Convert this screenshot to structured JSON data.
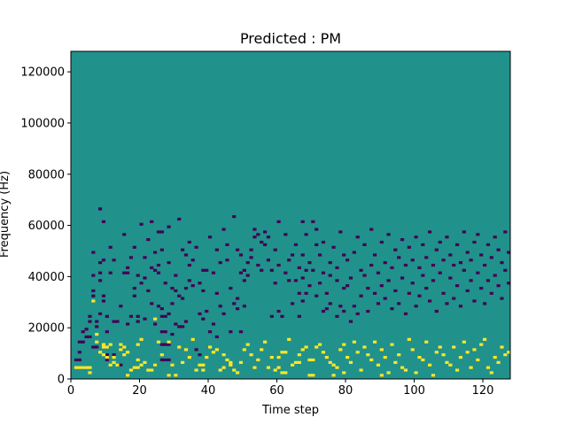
{
  "chart_data": {
    "type": "heatmap",
    "title": "Predicted : PM",
    "xlabel": "Time step",
    "ylabel": "Frequency (Hz)",
    "xlim": [
      0,
      128
    ],
    "ylim": [
      0,
      128000
    ],
    "x_ticks": [
      0,
      20,
      40,
      60,
      80,
      100,
      120
    ],
    "y_ticks": [
      0,
      20000,
      40000,
      60000,
      80000,
      100000,
      120000
    ],
    "grid": false,
    "colors": {
      "low": "#440154",
      "mid": "#21918c",
      "high": "#fde725"
    },
    "background_value": 0,
    "cells_low": [
      [
        1,
        7
      ],
      [
        2,
        7
      ],
      [
        2,
        10
      ],
      [
        2,
        14
      ],
      [
        3,
        14
      ],
      [
        3,
        18
      ],
      [
        4,
        16
      ],
      [
        4,
        19
      ],
      [
        5,
        16
      ],
      [
        5,
        22
      ],
      [
        5,
        24
      ],
      [
        6,
        12
      ],
      [
        6,
        32
      ],
      [
        6,
        34
      ],
      [
        6,
        40
      ],
      [
        6,
        49
      ],
      [
        7,
        12
      ],
      [
        7,
        20
      ],
      [
        7,
        22
      ],
      [
        8,
        25
      ],
      [
        8,
        38
      ],
      [
        8,
        41
      ],
      [
        8,
        45
      ],
      [
        8,
        66
      ],
      [
        9,
        30
      ],
      [
        9,
        32
      ],
      [
        9,
        46
      ],
      [
        9,
        61
      ],
      [
        10,
        7
      ],
      [
        10,
        9
      ],
      [
        10,
        18
      ],
      [
        10,
        24
      ],
      [
        11,
        41
      ],
      [
        11,
        51
      ],
      [
        12,
        9
      ],
      [
        12,
        22
      ],
      [
        12,
        46
      ],
      [
        13,
        22
      ],
      [
        14,
        5
      ],
      [
        14,
        28
      ],
      [
        15,
        41
      ],
      [
        15,
        56
      ],
      [
        16,
        21
      ],
      [
        16,
        41
      ],
      [
        16,
        43
      ],
      [
        17,
        24
      ],
      [
        17,
        47
      ],
      [
        18,
        32
      ],
      [
        18,
        35
      ],
      [
        18,
        51
      ],
      [
        19,
        22
      ],
      [
        19,
        24
      ],
      [
        19,
        40
      ],
      [
        20,
        37
      ],
      [
        20,
        60
      ],
      [
        21,
        23
      ],
      [
        21,
        39
      ],
      [
        21,
        47
      ],
      [
        22,
        34
      ],
      [
        22,
        54
      ],
      [
        23,
        29
      ],
      [
        23,
        43
      ],
      [
        23,
        61
      ],
      [
        24,
        5
      ],
      [
        24,
        21
      ],
      [
        24,
        42
      ],
      [
        24,
        49
      ],
      [
        25,
        28
      ],
      [
        25,
        41
      ],
      [
        25,
        44
      ],
      [
        25,
        57
      ],
      [
        26,
        7
      ],
      [
        26,
        13
      ],
      [
        26,
        18
      ],
      [
        26,
        24
      ],
      [
        26,
        27
      ],
      [
        26,
        50
      ],
      [
        26,
        57
      ],
      [
        27,
        7
      ],
      [
        27,
        13
      ],
      [
        27,
        18
      ],
      [
        27,
        24
      ],
      [
        27,
        37
      ],
      [
        28,
        7
      ],
      [
        28,
        13
      ],
      [
        28,
        25
      ],
      [
        28,
        45
      ],
      [
        28,
        59
      ],
      [
        29,
        17
      ],
      [
        29,
        29
      ],
      [
        29,
        35
      ],
      [
        30,
        21
      ],
      [
        30,
        34
      ],
      [
        30,
        40
      ],
      [
        31,
        20
      ],
      [
        31,
        32
      ],
      [
        31,
        62
      ],
      [
        32,
        20
      ],
      [
        32,
        31
      ],
      [
        32,
        50
      ],
      [
        33,
        22
      ],
      [
        33,
        35
      ],
      [
        33,
        48
      ],
      [
        34,
        38
      ],
      [
        34,
        44
      ],
      [
        34,
        53
      ],
      [
        35,
        36
      ],
      [
        35,
        46
      ],
      [
        36,
        11
      ],
      [
        36,
        51
      ],
      [
        37,
        9
      ],
      [
        37,
        25
      ],
      [
        37,
        37
      ],
      [
        38,
        23
      ],
      [
        38,
        34
      ],
      [
        38,
        42
      ],
      [
        39,
        26
      ],
      [
        39,
        42
      ],
      [
        40,
        18
      ],
      [
        40,
        55
      ],
      [
        41,
        21
      ],
      [
        41,
        41
      ],
      [
        42,
        16
      ],
      [
        42,
        33
      ],
      [
        42,
        50
      ],
      [
        43,
        28
      ],
      [
        43,
        45
      ],
      [
        44,
        25
      ],
      [
        44,
        58
      ],
      [
        45,
        46
      ],
      [
        45,
        52
      ],
      [
        46,
        18
      ],
      [
        46,
        35
      ],
      [
        47,
        29
      ],
      [
        47,
        63
      ],
      [
        48,
        27
      ],
      [
        48,
        31
      ],
      [
        48,
        50
      ],
      [
        49,
        18
      ],
      [
        49,
        41
      ],
      [
        49,
        48
      ],
      [
        50,
        28
      ],
      [
        50,
        38
      ],
      [
        50,
        42
      ],
      [
        51,
        40
      ],
      [
        51,
        45
      ],
      [
        52,
        47
      ],
      [
        52,
        50
      ],
      [
        53,
        55
      ],
      [
        53,
        58
      ],
      [
        54,
        44
      ],
      [
        54,
        56
      ],
      [
        55,
        42
      ],
      [
        55,
        53
      ],
      [
        56,
        52
      ],
      [
        56,
        57
      ],
      [
        57,
        46
      ],
      [
        57,
        55
      ],
      [
        58,
        24
      ],
      [
        58,
        42
      ],
      [
        59,
        37
      ],
      [
        59,
        50
      ],
      [
        60,
        26
      ],
      [
        60,
        44
      ],
      [
        60,
        61
      ],
      [
        61,
        24
      ],
      [
        62,
        41
      ],
      [
        62,
        56
      ],
      [
        63,
        38
      ],
      [
        63,
        46
      ],
      [
        64,
        29
      ],
      [
        64,
        48
      ],
      [
        65,
        38
      ],
      [
        65,
        52
      ],
      [
        66,
        24
      ],
      [
        66,
        33
      ],
      [
        66,
        43
      ],
      [
        67,
        30
      ],
      [
        67,
        39
      ],
      [
        67,
        48
      ],
      [
        67,
        61
      ],
      [
        68,
        33
      ],
      [
        68,
        42
      ],
      [
        68,
        56
      ],
      [
        69,
        36
      ],
      [
        69,
        45
      ],
      [
        70,
        42
      ],
      [
        70,
        61
      ],
      [
        71,
        32
      ],
      [
        71,
        52
      ],
      [
        71,
        58
      ],
      [
        72,
        37
      ],
      [
        72,
        48
      ],
      [
        73,
        26
      ],
      [
        73,
        41
      ],
      [
        73,
        53
      ],
      [
        74,
        27
      ],
      [
        74,
        33
      ],
      [
        75,
        29
      ],
      [
        75,
        40
      ],
      [
        75,
        45
      ],
      [
        76,
        51
      ],
      [
        77,
        24
      ],
      [
        77,
        38
      ],
      [
        77,
        43
      ],
      [
        78,
        28
      ],
      [
        78,
        57
      ],
      [
        79,
        26
      ],
      [
        79,
        35
      ],
      [
        79,
        48
      ],
      [
        80,
        36
      ],
      [
        80,
        46
      ],
      [
        81,
        22
      ],
      [
        81,
        39
      ],
      [
        82,
        28
      ],
      [
        82,
        49
      ],
      [
        83,
        25
      ],
      [
        83,
        55
      ],
      [
        84,
        32
      ],
      [
        84,
        42
      ],
      [
        85,
        40
      ],
      [
        85,
        52
      ],
      [
        86,
        26
      ],
      [
        86,
        35
      ],
      [
        87,
        44
      ],
      [
        87,
        58
      ],
      [
        88,
        33
      ],
      [
        88,
        48
      ],
      [
        89,
        29
      ],
      [
        89,
        41
      ],
      [
        90,
        36
      ],
      [
        90,
        53
      ],
      [
        91,
        31
      ],
      [
        91,
        45
      ],
      [
        92,
        38
      ],
      [
        92,
        56
      ],
      [
        93,
        27
      ],
      [
        93,
        43
      ],
      [
        94,
        34
      ],
      [
        94,
        50
      ],
      [
        95,
        29
      ],
      [
        95,
        47
      ],
      [
        96,
        39
      ],
      [
        96,
        54
      ],
      [
        97,
        25
      ],
      [
        97,
        44
      ],
      [
        98,
        33
      ],
      [
        98,
        51
      ],
      [
        99,
        37
      ],
      [
        99,
        46
      ],
      [
        100,
        28
      ],
      [
        100,
        55
      ],
      [
        101,
        32
      ],
      [
        101,
        43
      ],
      [
        102,
        40
      ],
      [
        102,
        52
      ],
      [
        103,
        35
      ],
      [
        103,
        47
      ],
      [
        104,
        30
      ],
      [
        104,
        57
      ],
      [
        105,
        38
      ],
      [
        105,
        44
      ],
      [
        106,
        26
      ],
      [
        106,
        50
      ],
      [
        107,
        41
      ],
      [
        107,
        53
      ],
      [
        108,
        33
      ],
      [
        108,
        46
      ],
      [
        109,
        29
      ],
      [
        109,
        55
      ],
      [
        110,
        39
      ],
      [
        110,
        48
      ],
      [
        111,
        31
      ],
      [
        111,
        44
      ],
      [
        112,
        36
      ],
      [
        112,
        52
      ],
      [
        113,
        28
      ],
      [
        113,
        45
      ],
      [
        114,
        42
      ],
      [
        114,
        57
      ],
      [
        115,
        34
      ],
      [
        115,
        49
      ],
      [
        116,
        38
      ],
      [
        116,
        46
      ],
      [
        117,
        30
      ],
      [
        117,
        53
      ],
      [
        118,
        41
      ],
      [
        118,
        56
      ],
      [
        119,
        35
      ],
      [
        119,
        48
      ],
      [
        120,
        29
      ],
      [
        120,
        44
      ],
      [
        121,
        38
      ],
      [
        121,
        52
      ],
      [
        122,
        33
      ],
      [
        122,
        47
      ],
      [
        123,
        40
      ],
      [
        123,
        55
      ],
      [
        124,
        36
      ],
      [
        124,
        50
      ],
      [
        125,
        31
      ],
      [
        125,
        45
      ],
      [
        126,
        42
      ],
      [
        126,
        57
      ],
      [
        127,
        37
      ],
      [
        127,
        49
      ]
    ],
    "cells_high": [
      [
        1,
        4
      ],
      [
        2,
        4
      ],
      [
        3,
        4
      ],
      [
        4,
        4
      ],
      [
        5,
        2
      ],
      [
        5,
        4
      ],
      [
        6,
        30
      ],
      [
        7,
        14
      ],
      [
        7,
        17
      ],
      [
        8,
        10
      ],
      [
        9,
        9
      ],
      [
        9,
        12
      ],
      [
        9,
        13
      ],
      [
        10,
        8
      ],
      [
        10,
        12
      ],
      [
        11,
        5
      ],
      [
        11,
        13
      ],
      [
        12,
        6
      ],
      [
        12,
        8
      ],
      [
        13,
        5
      ],
      [
        14,
        11
      ],
      [
        14,
        13
      ],
      [
        15,
        9
      ],
      [
        15,
        12
      ],
      [
        16,
        1
      ],
      [
        16,
        10
      ],
      [
        17,
        3
      ],
      [
        18,
        4
      ],
      [
        19,
        4
      ],
      [
        19,
        7
      ],
      [
        19,
        13
      ],
      [
        20,
        5
      ],
      [
        20,
        15
      ],
      [
        21,
        6
      ],
      [
        22,
        3
      ],
      [
        23,
        3
      ],
      [
        24,
        5
      ],
      [
        24,
        23
      ],
      [
        25,
        14
      ],
      [
        26,
        9
      ],
      [
        28,
        1
      ],
      [
        28,
        14
      ],
      [
        29,
        5
      ],
      [
        30,
        1
      ],
      [
        31,
        12
      ],
      [
        32,
        6
      ],
      [
        33,
        11
      ],
      [
        34,
        8
      ],
      [
        35,
        15
      ],
      [
        36,
        3
      ],
      [
        37,
        5
      ],
      [
        38,
        3
      ],
      [
        38,
        5
      ],
      [
        39,
        8
      ],
      [
        40,
        12
      ],
      [
        41,
        10
      ],
      [
        42,
        11
      ],
      [
        43,
        3
      ],
      [
        44,
        4
      ],
      [
        44,
        9
      ],
      [
        45,
        7
      ],
      [
        46,
        5
      ],
      [
        46,
        6
      ],
      [
        47,
        3
      ],
      [
        48,
        2
      ],
      [
        49,
        6
      ],
      [
        50,
        11
      ],
      [
        51,
        13
      ],
      [
        52,
        9
      ],
      [
        53,
        4
      ],
      [
        54,
        7
      ],
      [
        55,
        11
      ],
      [
        56,
        14
      ],
      [
        57,
        4
      ],
      [
        58,
        8
      ],
      [
        59,
        3
      ],
      [
        60,
        4
      ],
      [
        60,
        8
      ],
      [
        61,
        2
      ],
      [
        61,
        10
      ],
      [
        62,
        2
      ],
      [
        62,
        10
      ],
      [
        63,
        15
      ],
      [
        64,
        5
      ],
      [
        65,
        6
      ],
      [
        66,
        6
      ],
      [
        66,
        9
      ],
      [
        67,
        11
      ],
      [
        68,
        12
      ],
      [
        69,
        1
      ],
      [
        69,
        7
      ],
      [
        70,
        1
      ],
      [
        70,
        7
      ],
      [
        71,
        12
      ],
      [
        72,
        13
      ],
      [
        73,
        10
      ],
      [
        74,
        8
      ],
      [
        75,
        6
      ],
      [
        76,
        1
      ],
      [
        76,
        5
      ],
      [
        77,
        4
      ],
      [
        78,
        11
      ],
      [
        79,
        2
      ],
      [
        79,
        13
      ],
      [
        80,
        8
      ],
      [
        81,
        6
      ],
      [
        82,
        14
      ],
      [
        83,
        10
      ],
      [
        84,
        3
      ],
      [
        85,
        12
      ],
      [
        86,
        9
      ],
      [
        87,
        7
      ],
      [
        88,
        14
      ],
      [
        89,
        5
      ],
      [
        90,
        1
      ],
      [
        90,
        11
      ],
      [
        91,
        8
      ],
      [
        92,
        2
      ],
      [
        93,
        13
      ],
      [
        94,
        6
      ],
      [
        95,
        9
      ],
      [
        96,
        4
      ],
      [
        97,
        3
      ],
      [
        98,
        15
      ],
      [
        99,
        11
      ],
      [
        100,
        2
      ],
      [
        101,
        8
      ],
      [
        102,
        7
      ],
      [
        103,
        14
      ],
      [
        104,
        5
      ],
      [
        105,
        1
      ],
      [
        106,
        10
      ],
      [
        107,
        12
      ],
      [
        108,
        9
      ],
      [
        109,
        6
      ],
      [
        110,
        5
      ],
      [
        111,
        12
      ],
      [
        112,
        3
      ],
      [
        113,
        8
      ],
      [
        114,
        14
      ],
      [
        115,
        10
      ],
      [
        116,
        4
      ],
      [
        117,
        11
      ],
      [
        118,
        7
      ],
      [
        119,
        13
      ],
      [
        120,
        15
      ],
      [
        121,
        4
      ],
      [
        122,
        2
      ],
      [
        123,
        8
      ],
      [
        124,
        6
      ],
      [
        125,
        12
      ],
      [
        126,
        9
      ],
      [
        127,
        10
      ]
    ]
  }
}
